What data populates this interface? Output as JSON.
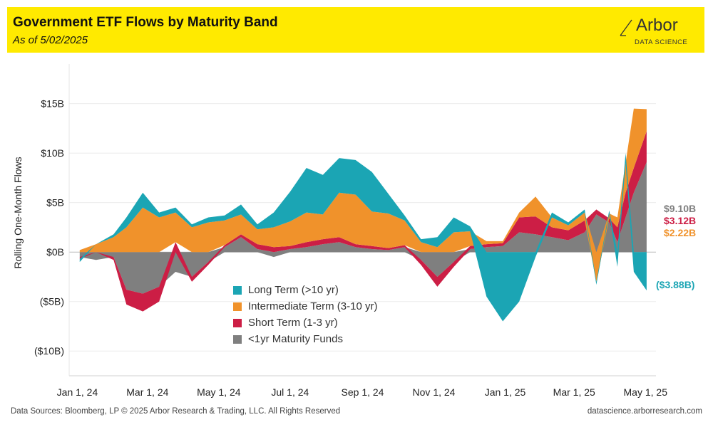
{
  "header": {
    "title": "Government ETF Flows by Maturity Band",
    "subtitle": "As of 5/02/2025",
    "logo_word": "Arbor",
    "logo_sub": "DATA SCIENCE"
  },
  "footer": {
    "sources": "Data Sources: Bloomberg, LP © 2025 Arbor Research & Trading, LLC. All Rights Reserved",
    "site": "datascience.arborresearch.com"
  },
  "colors": {
    "long": "#1ba5b4",
    "intermediate": "#f0922b",
    "short": "#cc1e45",
    "sub1yr": "#7f7f7f"
  },
  "end_labels": {
    "sub1yr": "$9.10B",
    "short": "$3.12B",
    "intermediate": "$2.22B",
    "long": "($3.88B)"
  },
  "chart_data": {
    "type": "area",
    "stacked": "diverging",
    "xlabel": "",
    "ylabel": "Rolling One-Month Flows",
    "ylim": [
      -12.5,
      19
    ],
    "y_ticks": [
      -10,
      -5,
      0,
      5,
      10,
      15
    ],
    "y_tick_labels": [
      "($10B)",
      "($5B)",
      "$0B",
      "$5B",
      "$10B",
      "$15B"
    ],
    "x_ticks": [
      "2024-01-01",
      "2024-03-01",
      "2024-05-01",
      "2024-07-01",
      "2024-09-01",
      "2024-11-01",
      "2025-01-01",
      "2025-03-01",
      "2025-05-01"
    ],
    "x_tick_labels": [
      "Jan 1, 24",
      "Mar 1, 24",
      "May 1, 24",
      "Jul 1, 24",
      "Sep 1, 24",
      "Nov 1, 24",
      "Jan 1, 25",
      "Mar 1, 25",
      "May 1, 25"
    ],
    "xlim": [
      "2023-12-25",
      "2025-05-10"
    ],
    "grid": true,
    "legend_position": "bottom-left of plot area",
    "x": [
      "2024-01-03",
      "2024-01-17",
      "2024-02-01",
      "2024-02-12",
      "2024-02-26",
      "2024-03-11",
      "2024-03-25",
      "2024-04-08",
      "2024-04-22",
      "2024-05-06",
      "2024-05-20",
      "2024-06-03",
      "2024-06-17",
      "2024-07-01",
      "2024-07-15",
      "2024-07-29",
      "2024-08-12",
      "2024-08-26",
      "2024-09-09",
      "2024-09-23",
      "2024-10-07",
      "2024-10-21",
      "2024-11-04",
      "2024-11-18",
      "2024-12-02",
      "2024-12-16",
      "2024-12-30",
      "2025-01-13",
      "2025-01-27",
      "2025-02-10",
      "2025-02-24",
      "2025-03-10",
      "2025-03-20",
      "2025-03-31",
      "2025-04-07",
      "2025-04-14",
      "2025-04-21",
      "2025-05-02"
    ],
    "series": [
      {
        "name": "<1yr Maturity Funds",
        "key": "sub1yr",
        "values": [
          -0.5,
          -0.8,
          -0.5,
          -3.8,
          -4.2,
          -3.5,
          -2.0,
          -2.5,
          -1.0,
          0.5,
          1.5,
          0.3,
          -0.5,
          0.3,
          0.5,
          0.8,
          1.0,
          0.5,
          0.3,
          0.2,
          0.5,
          -0.8,
          -2.5,
          -1.0,
          0.3,
          0.5,
          0.6,
          2.0,
          1.8,
          1.5,
          1.2,
          2.0,
          3.8,
          3.0,
          1.0,
          3.5,
          6.0,
          9.1
        ]
      },
      {
        "name": "Short Term (1-3 yr)",
        "key": "short",
        "values": [
          -0.2,
          0.0,
          -0.3,
          -1.5,
          -1.8,
          -1.5,
          1.0,
          -0.5,
          -0.3,
          0.2,
          0.3,
          0.5,
          0.5,
          0.3,
          0.5,
          0.5,
          0.5,
          0.3,
          0.3,
          0.2,
          0.2,
          -0.5,
          -1.0,
          -0.5,
          0.3,
          0.3,
          0.3,
          1.5,
          1.8,
          1.0,
          1.0,
          1.2,
          0.5,
          0.4,
          1.5,
          2.5,
          2.5,
          3.12
        ]
      },
      {
        "name": "Intermediate Term (3-10 yr)",
        "key": "intermediate",
        "values": [
          0.2,
          0.8,
          1.5,
          2.5,
          4.5,
          3.5,
          3.0,
          2.5,
          3.0,
          2.5,
          2.0,
          1.5,
          2.0,
          2.5,
          3.0,
          2.5,
          4.5,
          5.0,
          3.5,
          3.5,
          2.5,
          1.0,
          0.5,
          2.0,
          1.5,
          0.3,
          0.2,
          0.5,
          2.0,
          1.0,
          0.5,
          0.8,
          -3.0,
          0.5,
          1.0,
          3.0,
          6.0,
          2.22
        ]
      },
      {
        "name": "Long Term (>10 yr)",
        "key": "long",
        "values": [
          -0.3,
          0.0,
          0.3,
          1.0,
          1.5,
          0.5,
          0.5,
          0.3,
          0.5,
          0.5,
          1.0,
          0.5,
          1.5,
          3.0,
          4.5,
          4.0,
          3.5,
          3.5,
          4.0,
          2.0,
          0.5,
          0.3,
          1.0,
          1.5,
          0.5,
          -4.5,
          -7.0,
          -5.0,
          -0.5,
          0.5,
          0.3,
          0.3,
          -0.3,
          0.3,
          -1.5,
          1.0,
          -2.0,
          -3.88
        ]
      }
    ]
  }
}
